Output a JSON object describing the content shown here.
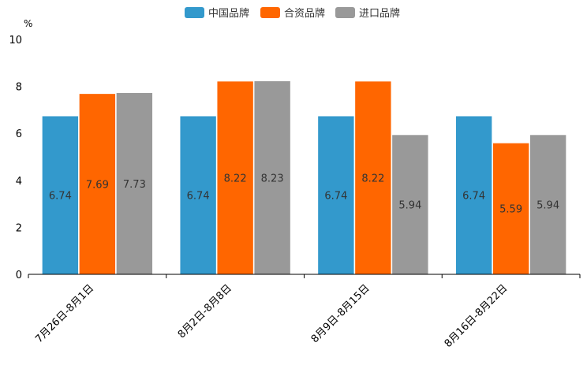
{
  "chart_data": {
    "type": "bar",
    "title": "",
    "ylabel": "%",
    "xlabel": "",
    "ylim": [
      0,
      10
    ],
    "yticks": [
      0,
      2,
      4,
      6,
      8,
      10
    ],
    "grid": false,
    "legend_position": "top-center",
    "categories": [
      "7月26日-8月1日",
      "8月2日-8月8日",
      "8月9日-8月15日",
      "8月16日-8月22日"
    ],
    "series": [
      {
        "name": "中国品牌",
        "color": "#3399cc",
        "values": [
          6.74,
          6.74,
          6.74,
          6.74
        ]
      },
      {
        "name": "合资品牌",
        "color": "#ff6600",
        "values": [
          7.69,
          8.22,
          8.22,
          5.59
        ]
      },
      {
        "name": "进口品牌",
        "color": "#999999",
        "values": [
          7.73,
          8.23,
          5.94,
          5.94
        ]
      }
    ]
  }
}
